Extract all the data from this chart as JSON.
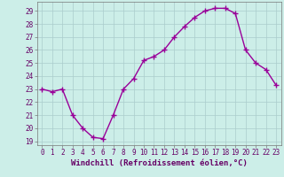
{
  "x": [
    0,
    1,
    2,
    3,
    4,
    5,
    6,
    7,
    8,
    9,
    10,
    11,
    12,
    13,
    14,
    15,
    16,
    17,
    18,
    19,
    20,
    21,
    22,
    23
  ],
  "y": [
    23,
    22.8,
    23,
    21,
    20,
    19.3,
    19.2,
    21,
    23,
    23.8,
    25.2,
    25.5,
    26,
    27,
    27.8,
    28.5,
    29,
    29.2,
    29.2,
    28.8,
    26,
    25,
    24.5,
    23.3
  ],
  "line_color": "#990099",
  "marker": "+",
  "marker_size": 4,
  "marker_ew": 1.0,
  "bg_color": "#cceee8",
  "grid_color": "#aacccc",
  "xlabel": "Windchill (Refroidissement éolien,°C)",
  "xlabel_fontsize": 6.5,
  "yticks": [
    19,
    20,
    21,
    22,
    23,
    24,
    25,
    26,
    27,
    28,
    29
  ],
  "xlim": [
    -0.5,
    23.5
  ],
  "ylim": [
    18.7,
    29.7
  ],
  "ytick_labels": [
    "19",
    "20",
    "21",
    "22",
    "23",
    "24",
    "25",
    "26",
    "27",
    "28",
    "29"
  ],
  "xtick_labels": [
    "0",
    "1",
    "2",
    "3",
    "4",
    "5",
    "6",
    "7",
    "8",
    "9",
    "10",
    "11",
    "12",
    "13",
    "14",
    "15",
    "16",
    "17",
    "18",
    "19",
    "20",
    "21",
    "22",
    "23"
  ],
  "tick_fontsize": 5.5,
  "linewidth": 1.0,
  "label_color": "#660066"
}
